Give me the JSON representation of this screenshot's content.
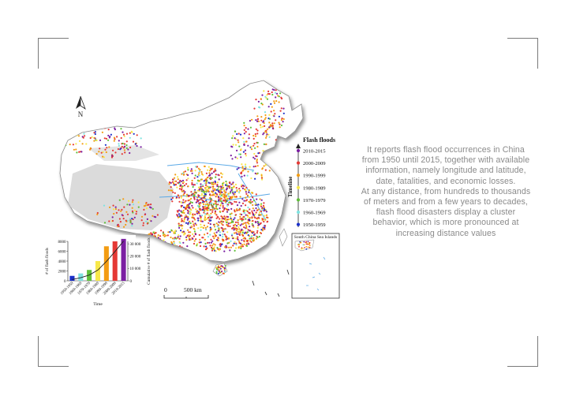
{
  "map": {
    "north_label": "N",
    "scale_label_zero": "0",
    "scale_label_distance": "500 km",
    "inset_title": "South China Sea Islands",
    "legend": {
      "title": "Flash floods",
      "timeline_label": "Timeline",
      "items": [
        {
          "label": "2010-2015",
          "color": "#7b1fa2"
        },
        {
          "label": "2000-2009",
          "color": "#e53935"
        },
        {
          "label": "1990-1999",
          "color": "#f39c12"
        },
        {
          "label": "1980-1989",
          "color": "#f7e84a"
        },
        {
          "label": "1970-1979",
          "color": "#5fbf3a"
        },
        {
          "label": "1960-1969",
          "color": "#7fe3e0"
        },
        {
          "label": "1950-1959",
          "color": "#1a2fc9"
        }
      ]
    }
  },
  "chart_data": {
    "type": "bar",
    "categories": [
      "1950-1959",
      "1960-1969",
      "1970-1979",
      "1980-1989",
      "1990-1999",
      "2000-2009",
      "2010-2015"
    ],
    "values": [
      1000,
      1500,
      2200,
      4000,
      7000,
      8000,
      8500
    ],
    "colors": [
      "#1a2fc9",
      "#7fe3e0",
      "#5fbf3a",
      "#f7e84a",
      "#f39c12",
      "#e53935",
      "#7b1fa2"
    ],
    "series": [
      {
        "name": "# of flash floods",
        "values": [
          1000,
          1500,
          2200,
          4000,
          7000,
          8000,
          8500
        ]
      },
      {
        "name": "Cumulative # of flash floods",
        "values": [
          1000,
          2500,
          4700,
          8700,
          15700,
          23700,
          32200
        ]
      }
    ],
    "xlabel": "Time",
    "ylabel": "# of flash floods",
    "ylabel_right": "Cumulative # of flash floods",
    "ylim": [
      0,
      8000
    ],
    "yticks": [
      "0",
      "2000",
      "4000",
      "6000",
      "8000"
    ],
    "ylim_right": [
      0,
      32000
    ],
    "yticks_right": [
      "0",
      "10 000",
      "20 000",
      "30 000"
    ]
  },
  "caption": {
    "paragraph_1": "It reports flash flood occurrences in China from 1950 until 2015, together with available information, namely longitude and latitude, date, fatalities, and economic losses.",
    "paragraph_2": "At any distance, from hundreds to thousands of meters and from a few years to decades, flash flood disasters display a cluster behavior, which is more pronounced at increasing distance values"
  }
}
